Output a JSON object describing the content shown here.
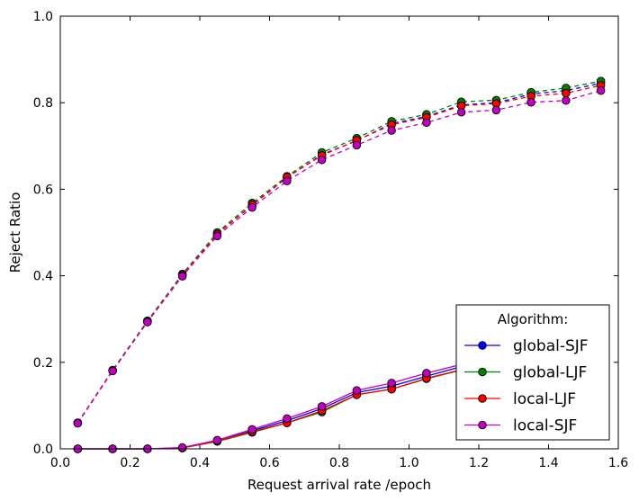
{
  "chart_data": {
    "type": "line",
    "title": "",
    "xlabel": "Request arrival rate /epoch",
    "ylabel": "Reject Ratio",
    "xlim": [
      0.0,
      1.6
    ],
    "ylim": [
      0.0,
      1.0
    ],
    "xticks": [
      "0.0",
      "0.2",
      "0.4",
      "0.6",
      "0.8",
      "1.0",
      "1.2",
      "1.4",
      "1.6"
    ],
    "yticks": [
      "0.0",
      "0.2",
      "0.4",
      "0.6",
      "0.8",
      "1.0"
    ],
    "grid": false,
    "legend": {
      "title": "Algorithm:",
      "placement": "lower-right",
      "entries": [
        "global-SJF",
        "global-LJF",
        "local-LJF",
        "local-SJF"
      ]
    },
    "x": [
      0.05,
      0.15,
      0.25,
      0.35,
      0.45,
      0.55,
      0.65,
      0.75,
      0.85,
      0.95,
      1.05,
      1.15,
      1.25,
      1.35,
      1.45,
      1.55
    ],
    "series": [
      {
        "name": "global-SJF",
        "group": "solid",
        "color": "#0000ff",
        "values": [
          0.0,
          0.0,
          0.0,
          0.002,
          0.018,
          0.042,
          0.065,
          0.093,
          0.13,
          0.145,
          0.168,
          0.19,
          0.205,
          0.235,
          0.275,
          0.315
        ]
      },
      {
        "name": "global-LJF",
        "group": "solid",
        "color": "#008000",
        "values": [
          0.0,
          0.0,
          0.0,
          0.002,
          0.017,
          0.038,
          0.06,
          0.085,
          0.125,
          0.138,
          0.162,
          0.182,
          0.2,
          0.228,
          0.268,
          0.305
        ]
      },
      {
        "name": "local-LJF",
        "group": "solid",
        "color": "#ff0000",
        "values": [
          0.0,
          0.0,
          0.0,
          0.002,
          0.018,
          0.04,
          0.06,
          0.088,
          0.125,
          0.138,
          0.163,
          0.183,
          0.201,
          0.23,
          0.27,
          0.308
        ]
      },
      {
        "name": "local-SJF",
        "group": "solid",
        "color": "#bf00bf",
        "values": [
          0.0,
          0.0,
          0.0,
          0.003,
          0.02,
          0.045,
          0.07,
          0.098,
          0.135,
          0.152,
          0.175,
          0.195,
          0.21,
          0.24,
          0.28,
          0.32
        ]
      },
      {
        "name": "global-SJF",
        "group": "dashed",
        "color": "#0000ff",
        "values": [
          0.06,
          0.181,
          0.295,
          0.402,
          0.497,
          0.563,
          0.627,
          0.68,
          0.712,
          0.752,
          0.768,
          0.795,
          0.8,
          0.82,
          0.828,
          0.845
        ]
      },
      {
        "name": "global-LJF",
        "group": "dashed",
        "color": "#008000",
        "values": [
          0.06,
          0.182,
          0.296,
          0.404,
          0.5,
          0.568,
          0.63,
          0.685,
          0.718,
          0.757,
          0.773,
          0.802,
          0.806,
          0.824,
          0.834,
          0.85
        ]
      },
      {
        "name": "local-LJF",
        "group": "dashed",
        "color": "#ff0000",
        "values": [
          0.06,
          0.181,
          0.294,
          0.401,
          0.496,
          0.564,
          0.628,
          0.678,
          0.713,
          0.749,
          0.766,
          0.793,
          0.798,
          0.815,
          0.822,
          0.84
        ]
      },
      {
        "name": "local-SJF",
        "group": "dashed",
        "color": "#bf00bf",
        "values": [
          0.059,
          0.18,
          0.293,
          0.399,
          0.492,
          0.558,
          0.619,
          0.668,
          0.702,
          0.736,
          0.754,
          0.778,
          0.783,
          0.801,
          0.805,
          0.828
        ]
      }
    ]
  }
}
